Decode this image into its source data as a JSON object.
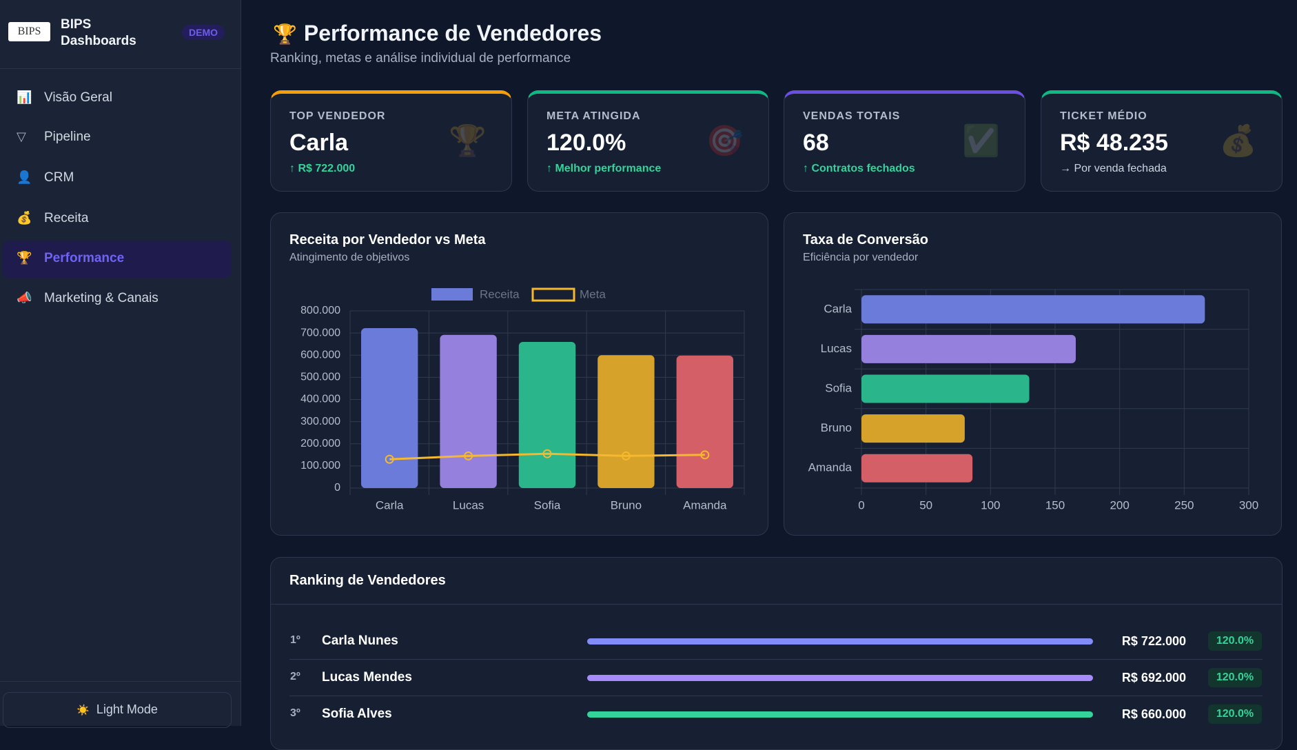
{
  "sidebar": {
    "logo": "BIPS",
    "brand": "BIPS Dashboards",
    "badge": "DEMO",
    "nav": [
      {
        "icon": "📊",
        "label": "Visão Geral"
      },
      {
        "icon": "▽",
        "label": "Pipeline"
      },
      {
        "icon": "👤",
        "label": "CRM"
      },
      {
        "icon": "💰",
        "label": "Receita"
      },
      {
        "icon": "🏆",
        "label": "Performance",
        "active": true
      },
      {
        "icon": "📣",
        "label": "Marketing & Canais"
      }
    ],
    "theme_toggle": {
      "icon": "☀️",
      "label": "Light Mode"
    }
  },
  "header": {
    "icon": "🏆",
    "title": "Performance de Vendedores",
    "subtitle": "Ranking, metas e análise individual de performance"
  },
  "kpis": [
    {
      "label": "TOP VENDEDOR",
      "value": "Carla",
      "sub": "↑ R$ 722.000",
      "icon": "🏆",
      "accent": "#f59e0b",
      "trend": "up"
    },
    {
      "label": "META ATINGIDA",
      "value": "120.0%",
      "sub": "↑ Melhor performance",
      "icon": "🎯",
      "accent": "#10b981",
      "trend": "up"
    },
    {
      "label": "VENDAS TOTAIS",
      "value": "68",
      "sub": "↑ Contratos fechados",
      "icon": "✅",
      "accent": "#6d4fe0",
      "trend": "up"
    },
    {
      "label": "TICKET MÉDIO",
      "value": "R$ 48.235",
      "sub": "→ Por venda fechada",
      "icon": "💰",
      "accent": "#10b981",
      "trend": "neutral"
    }
  ],
  "chart_data": [
    {
      "type": "bar",
      "title": "Receita por Vendedor vs Meta",
      "subtitle": "Atingimento de objetivos",
      "categories": [
        "Carla",
        "Lucas",
        "Sofia",
        "Bruno",
        "Amanda"
      ],
      "series": [
        {
          "name": "Receita",
          "color": "#6b7bd9",
          "colors": [
            "#6b7bd9",
            "#9680dd",
            "#2bb58a",
            "#d6a22a",
            "#d45f66"
          ],
          "values": [
            722000,
            692000,
            660000,
            600000,
            598000
          ]
        },
        {
          "name": "Meta",
          "type": "line",
          "color": "#f5b82e",
          "values": [
            130000,
            145000,
            155000,
            145000,
            150000
          ]
        }
      ],
      "ylim": [
        0,
        800000
      ],
      "yticks": [
        0,
        {
          "value": 100000,
          "label": "100.000"
        },
        {
          "value": 200000,
          "label": "200.000"
        },
        {
          "value": 300000,
          "label": "300.000"
        },
        {
          "value": 400000,
          "label": "400.000"
        },
        {
          "value": 500000,
          "label": "500.000"
        },
        {
          "value": 600000,
          "label": "600.000"
        },
        {
          "value": 700000,
          "label": "700.000"
        },
        {
          "value": 800000,
          "label": "800.000"
        }
      ],
      "grid": true,
      "legend": "top"
    },
    {
      "type": "hbar",
      "title": "Taxa de Conversão",
      "subtitle": "Eficiência por vendedor",
      "categories": [
        "Carla",
        "Lucas",
        "Sofia",
        "Bruno",
        "Amanda"
      ],
      "values": [
        266,
        166,
        130,
        80,
        86
      ],
      "colors": [
        "#6b7bd9",
        "#9680dd",
        "#2bb58a",
        "#d6a22a",
        "#d45f66"
      ],
      "xlim": [
        0,
        300
      ],
      "xticks": [
        0,
        50,
        100,
        150,
        200,
        250,
        300
      ],
      "grid": true
    }
  ],
  "ranking": {
    "title": "Ranking de Vendedores",
    "rows": [
      {
        "rank": "1º",
        "name": "Carla Nunes",
        "value": "R$ 722.000",
        "pct": "120.0%",
        "color": "#818cf8"
      },
      {
        "rank": "2º",
        "name": "Lucas Mendes",
        "value": "R$ 692.000",
        "pct": "120.0%",
        "color": "#a78bfa"
      },
      {
        "rank": "3º",
        "name": "Sofia Alves",
        "value": "R$ 660.000",
        "pct": "120.0%",
        "color": "#34d399"
      }
    ]
  }
}
